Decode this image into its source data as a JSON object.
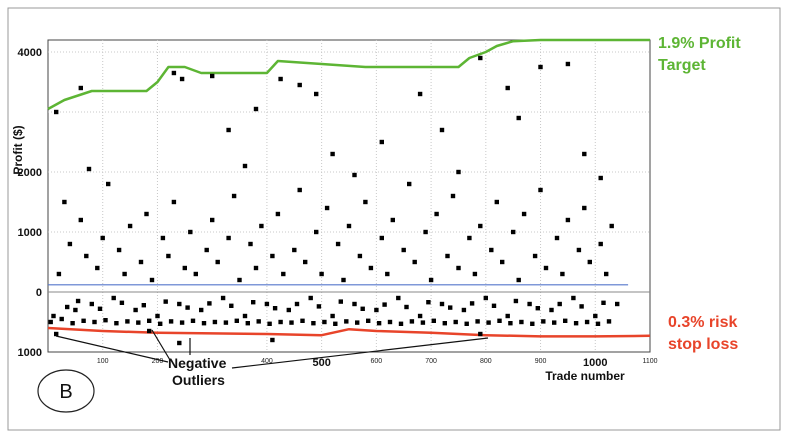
{
  "chart_data": {
    "type": "scatter",
    "xlabel": "Trade number",
    "ylabel": "Profit ($)",
    "xlim": [
      0,
      1100
    ],
    "ylim": [
      -1000,
      4200
    ],
    "y_ticks": [
      {
        "value": 4000,
        "label": "4000"
      },
      {
        "value": 2000,
        "label": "2000"
      },
      {
        "value": 1000,
        "label": "1000"
      },
      {
        "value": 0,
        "label": "0"
      },
      {
        "value": -1000,
        "label": "1000"
      }
    ],
    "x_ticks": [
      {
        "value": 100,
        "label": "100",
        "size": "small"
      },
      {
        "value": 200,
        "label": "200",
        "size": "small"
      },
      {
        "value": 400,
        "label": "400",
        "size": "small"
      },
      {
        "value": 500,
        "label": "500",
        "size": "large"
      },
      {
        "value": 600,
        "label": "600",
        "size": "small"
      },
      {
        "value": 700,
        "label": "700",
        "size": "small"
      },
      {
        "value": 800,
        "label": "800",
        "size": "small"
      },
      {
        "value": 900,
        "label": "900",
        "size": "small"
      },
      {
        "value": 1000,
        "label": "1000",
        "size": "large"
      },
      {
        "value": 1100,
        "label": "1100",
        "size": "small"
      }
    ],
    "grid": true,
    "profit_target_line": {
      "color": "#5db534",
      "x": [
        0,
        30,
        80,
        180,
        200,
        220,
        250,
        280,
        300,
        400,
        420,
        580,
        600,
        750,
        770,
        800,
        820,
        850,
        900,
        1000,
        1100
      ],
      "y": [
        3050,
        3200,
        3350,
        3350,
        3500,
        3750,
        3750,
        3650,
        3650,
        3650,
        3850,
        3750,
        3750,
        3750,
        3900,
        4000,
        4100,
        4180,
        4200,
        4200,
        4200
      ]
    },
    "stop_loss_line": {
      "color": "#e8442a",
      "x": [
        0,
        100,
        200,
        300,
        400,
        500,
        550,
        600,
        700,
        800,
        900,
        1000,
        1100
      ],
      "y": [
        -600,
        -650,
        -680,
        -690,
        -700,
        -720,
        -620,
        -650,
        -680,
        -720,
        -740,
        -740,
        -730
      ]
    },
    "zero_line": {
      "color": "#5577cc",
      "x": [
        0,
        1060
      ],
      "y": [
        120,
        120
      ]
    },
    "series": [
      {
        "marker": "square",
        "color": "#000000",
        "points": [
          [
            10,
            -400
          ],
          [
            20,
            300
          ],
          [
            30,
            1500
          ],
          [
            40,
            800
          ],
          [
            50,
            -300
          ],
          [
            60,
            1200
          ],
          [
            70,
            600
          ],
          [
            80,
            -200
          ],
          [
            90,
            400
          ],
          [
            100,
            900
          ],
          [
            110,
            1800
          ],
          [
            120,
            -100
          ],
          [
            130,
            700
          ],
          [
            140,
            300
          ],
          [
            150,
            1100
          ],
          [
            160,
            -300
          ],
          [
            170,
            500
          ],
          [
            180,
            1300
          ],
          [
            190,
            200
          ],
          [
            200,
            -400
          ],
          [
            210,
            900
          ],
          [
            220,
            600
          ],
          [
            230,
            1500
          ],
          [
            240,
            -200
          ],
          [
            250,
            400
          ],
          [
            260,
            1000
          ],
          [
            270,
            300
          ],
          [
            280,
            -300
          ],
          [
            290,
            700
          ],
          [
            300,
            1200
          ],
          [
            310,
            500
          ],
          [
            320,
            -100
          ],
          [
            330,
            900
          ],
          [
            340,
            1600
          ],
          [
            350,
            200
          ],
          [
            360,
            -400
          ],
          [
            370,
            800
          ],
          [
            380,
            400
          ],
          [
            390,
            1100
          ],
          [
            400,
            -200
          ],
          [
            410,
            600
          ],
          [
            420,
            1300
          ],
          [
            430,
            300
          ],
          [
            440,
            -300
          ],
          [
            450,
            700
          ],
          [
            460,
            1700
          ],
          [
            470,
            500
          ],
          [
            480,
            -100
          ],
          [
            490,
            1000
          ],
          [
            500,
            300
          ],
          [
            510,
            1400
          ],
          [
            520,
            -400
          ],
          [
            530,
            800
          ],
          [
            540,
            200
          ],
          [
            550,
            1100
          ],
          [
            560,
            -200
          ],
          [
            570,
            600
          ],
          [
            580,
            1500
          ],
          [
            590,
            400
          ],
          [
            600,
            -300
          ],
          [
            610,
            900
          ],
          [
            620,
            300
          ],
          [
            630,
            1200
          ],
          [
            640,
            -100
          ],
          [
            650,
            700
          ],
          [
            660,
            1800
          ],
          [
            670,
            500
          ],
          [
            680,
            -400
          ],
          [
            690,
            1000
          ],
          [
            700,
            200
          ],
          [
            710,
            1300
          ],
          [
            720,
            -200
          ],
          [
            730,
            600
          ],
          [
            740,
            1600
          ],
          [
            750,
            400
          ],
          [
            760,
            -300
          ],
          [
            770,
            900
          ],
          [
            780,
            300
          ],
          [
            790,
            1100
          ],
          [
            800,
            -100
          ],
          [
            810,
            700
          ],
          [
            820,
            1500
          ],
          [
            830,
            500
          ],
          [
            840,
            -400
          ],
          [
            850,
            1000
          ],
          [
            860,
            200
          ],
          [
            870,
            1300
          ],
          [
            880,
            -200
          ],
          [
            890,
            600
          ],
          [
            900,
            1700
          ],
          [
            910,
            400
          ],
          [
            920,
            -300
          ],
          [
            930,
            900
          ],
          [
            940,
            300
          ],
          [
            950,
            1200
          ],
          [
            960,
            -100
          ],
          [
            970,
            700
          ],
          [
            980,
            1400
          ],
          [
            990,
            500
          ],
          [
            1000,
            -400
          ],
          [
            1010,
            800
          ],
          [
            1020,
            300
          ],
          [
            1030,
            1100
          ],
          [
            1040,
            -200
          ],
          [
            15,
            3000
          ],
          [
            60,
            3400
          ],
          [
            75,
            2050
          ],
          [
            230,
            3650
          ],
          [
            245,
            3550
          ],
          [
            300,
            3600
          ],
          [
            330,
            2700
          ],
          [
            360,
            2100
          ],
          [
            380,
            3050
          ],
          [
            425,
            3550
          ],
          [
            460,
            3450
          ],
          [
            490,
            3300
          ],
          [
            520,
            2300
          ],
          [
            560,
            1950
          ],
          [
            610,
            2500
          ],
          [
            680,
            3300
          ],
          [
            720,
            2700
          ],
          [
            750,
            2000
          ],
          [
            790,
            3900
          ],
          [
            840,
            3400
          ],
          [
            860,
            2900
          ],
          [
            900,
            3750
          ],
          [
            950,
            3800
          ],
          [
            980,
            2300
          ],
          [
            1010,
            1900
          ],
          [
            410,
            -800
          ],
          [
            790,
            -700
          ],
          [
            15,
            -700
          ],
          [
            185,
            -650
          ],
          [
            240,
            -850
          ],
          [
            5,
            -500
          ],
          [
            25,
            -450
          ],
          [
            45,
            -520
          ],
          [
            65,
            -480
          ],
          [
            85,
            -500
          ],
          [
            105,
            -470
          ],
          [
            125,
            -520
          ],
          [
            145,
            -490
          ],
          [
            165,
            -510
          ],
          [
            185,
            -480
          ],
          [
            205,
            -530
          ],
          [
            225,
            -490
          ],
          [
            245,
            -510
          ],
          [
            265,
            -480
          ],
          [
            285,
            -520
          ],
          [
            305,
            -500
          ],
          [
            325,
            -510
          ],
          [
            345,
            -480
          ],
          [
            365,
            -520
          ],
          [
            385,
            -490
          ],
          [
            405,
            -530
          ],
          [
            425,
            -500
          ],
          [
            445,
            -510
          ],
          [
            465,
            -480
          ],
          [
            485,
            -520
          ],
          [
            505,
            -500
          ],
          [
            525,
            -530
          ],
          [
            545,
            -490
          ],
          [
            565,
            -510
          ],
          [
            585,
            -480
          ],
          [
            605,
            -520
          ],
          [
            625,
            -500
          ],
          [
            645,
            -530
          ],
          [
            665,
            -490
          ],
          [
            685,
            -510
          ],
          [
            705,
            -480
          ],
          [
            725,
            -520
          ],
          [
            745,
            -500
          ],
          [
            765,
            -530
          ],
          [
            785,
            -490
          ],
          [
            805,
            -510
          ],
          [
            825,
            -480
          ],
          [
            845,
            -520
          ],
          [
            865,
            -500
          ],
          [
            885,
            -530
          ],
          [
            905,
            -490
          ],
          [
            925,
            -510
          ],
          [
            945,
            -480
          ],
          [
            965,
            -520
          ],
          [
            985,
            -500
          ],
          [
            1005,
            -530
          ],
          [
            1025,
            -490
          ],
          [
            35,
            -250
          ],
          [
            55,
            -150
          ],
          [
            95,
            -280
          ],
          [
            135,
            -180
          ],
          [
            175,
            -220
          ],
          [
            215,
            -160
          ],
          [
            255,
            -260
          ],
          [
            295,
            -190
          ],
          [
            335,
            -230
          ],
          [
            375,
            -170
          ],
          [
            415,
            -270
          ],
          [
            455,
            -200
          ],
          [
            495,
            -240
          ],
          [
            535,
            -160
          ],
          [
            575,
            -280
          ],
          [
            615,
            -210
          ],
          [
            655,
            -250
          ],
          [
            695,
            -170
          ],
          [
            735,
            -260
          ],
          [
            775,
            -190
          ],
          [
            815,
            -230
          ],
          [
            855,
            -150
          ],
          [
            895,
            -270
          ],
          [
            935,
            -200
          ],
          [
            975,
            -240
          ],
          [
            1015,
            -180
          ]
        ]
      }
    ],
    "annotations": [
      {
        "text": "1.9% Profit",
        "style": "green"
      },
      {
        "text": "Target",
        "style": "green"
      },
      {
        "text": "0.3% risk",
        "style": "red"
      },
      {
        "text": "stop loss",
        "style": "red"
      },
      {
        "text": "Negative",
        "style": "black"
      },
      {
        "text": "Outliers",
        "style": "black"
      }
    ],
    "panel_label": "B"
  }
}
